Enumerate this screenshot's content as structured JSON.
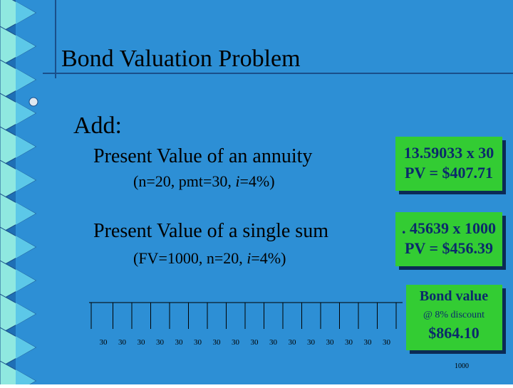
{
  "title": "Bond Valuation Problem",
  "heading": "Add:",
  "items": [
    {
      "label": "Present Value of an annuity",
      "params": {
        "before": "(n=20, pmt=30, ",
        "italic": "i",
        "after": "=4%)"
      },
      "box": [
        "13.59033 x 30",
        "PV = $407.71"
      ]
    },
    {
      "label": "Present Value of a single sum",
      "params": {
        "before": "(FV=1000, n=20, ",
        "italic": "i",
        "after": "=4%)"
      },
      "box": [
        ". 45639 x 1000",
        "PV = $456.39"
      ]
    }
  ],
  "result": {
    "title": "Bond value",
    "subtitle": "@ 8% discount",
    "value": "$864.10"
  },
  "timeline": {
    "payments": [
      "30",
      "30",
      "30",
      "30",
      "30",
      "30",
      "30",
      "30",
      "30",
      "30",
      "30",
      "30",
      "30",
      "30",
      "30",
      "30"
    ],
    "final": "1000"
  }
}
